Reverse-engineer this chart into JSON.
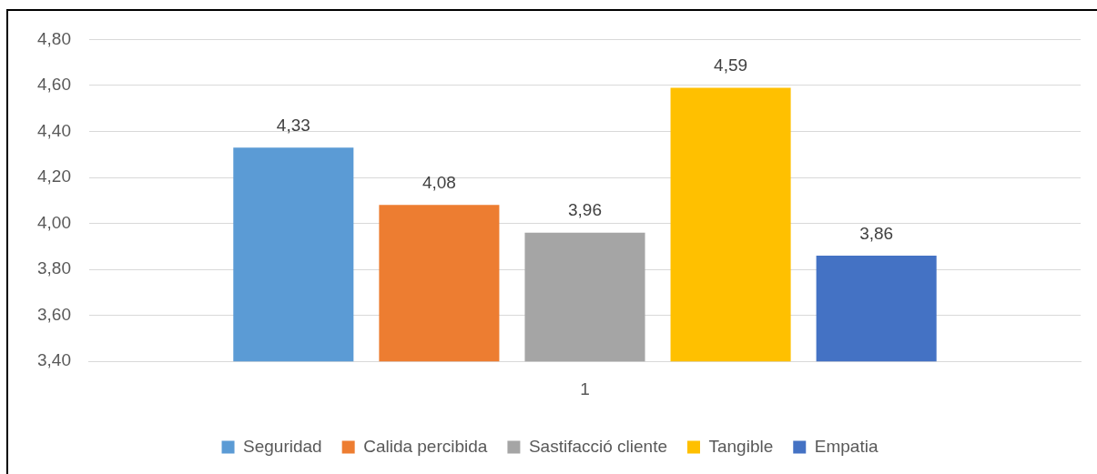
{
  "chart_data": {
    "type": "bar",
    "categories": [
      "1"
    ],
    "series": [
      {
        "name": "Seguridad",
        "color": "#5b9bd5",
        "values": [
          4.33
        ],
        "value_labels": [
          "4,33"
        ]
      },
      {
        "name": "Calida percibida",
        "color": "#ed7d31",
        "values": [
          4.08
        ],
        "value_labels": [
          "4,08"
        ]
      },
      {
        "name": "Sastifacció cliente",
        "color": "#a5a5a5",
        "values": [
          3.96
        ],
        "value_labels": [
          "3,96"
        ]
      },
      {
        "name": "Tangible",
        "color": "#ffc000",
        "values": [
          4.59
        ],
        "value_labels": [
          "4,59"
        ]
      },
      {
        "name": "Empatia",
        "color": "#4472c4",
        "values": [
          3.86
        ],
        "value_labels": [
          "3,86"
        ]
      }
    ],
    "ylim": [
      3.4,
      4.8
    ],
    "yticks": [
      {
        "value": 3.4,
        "label": "3,40"
      },
      {
        "value": 3.6,
        "label": "3,60"
      },
      {
        "value": 3.8,
        "label": "3,80"
      },
      {
        "value": 4.0,
        "label": "4,00"
      },
      {
        "value": 4.2,
        "label": "4,20"
      },
      {
        "value": 4.4,
        "label": "4,40"
      },
      {
        "value": 4.6,
        "label": "4,60"
      },
      {
        "value": 4.8,
        "label": "4,80"
      }
    ],
    "grid": "y",
    "legend": "bottom"
  }
}
